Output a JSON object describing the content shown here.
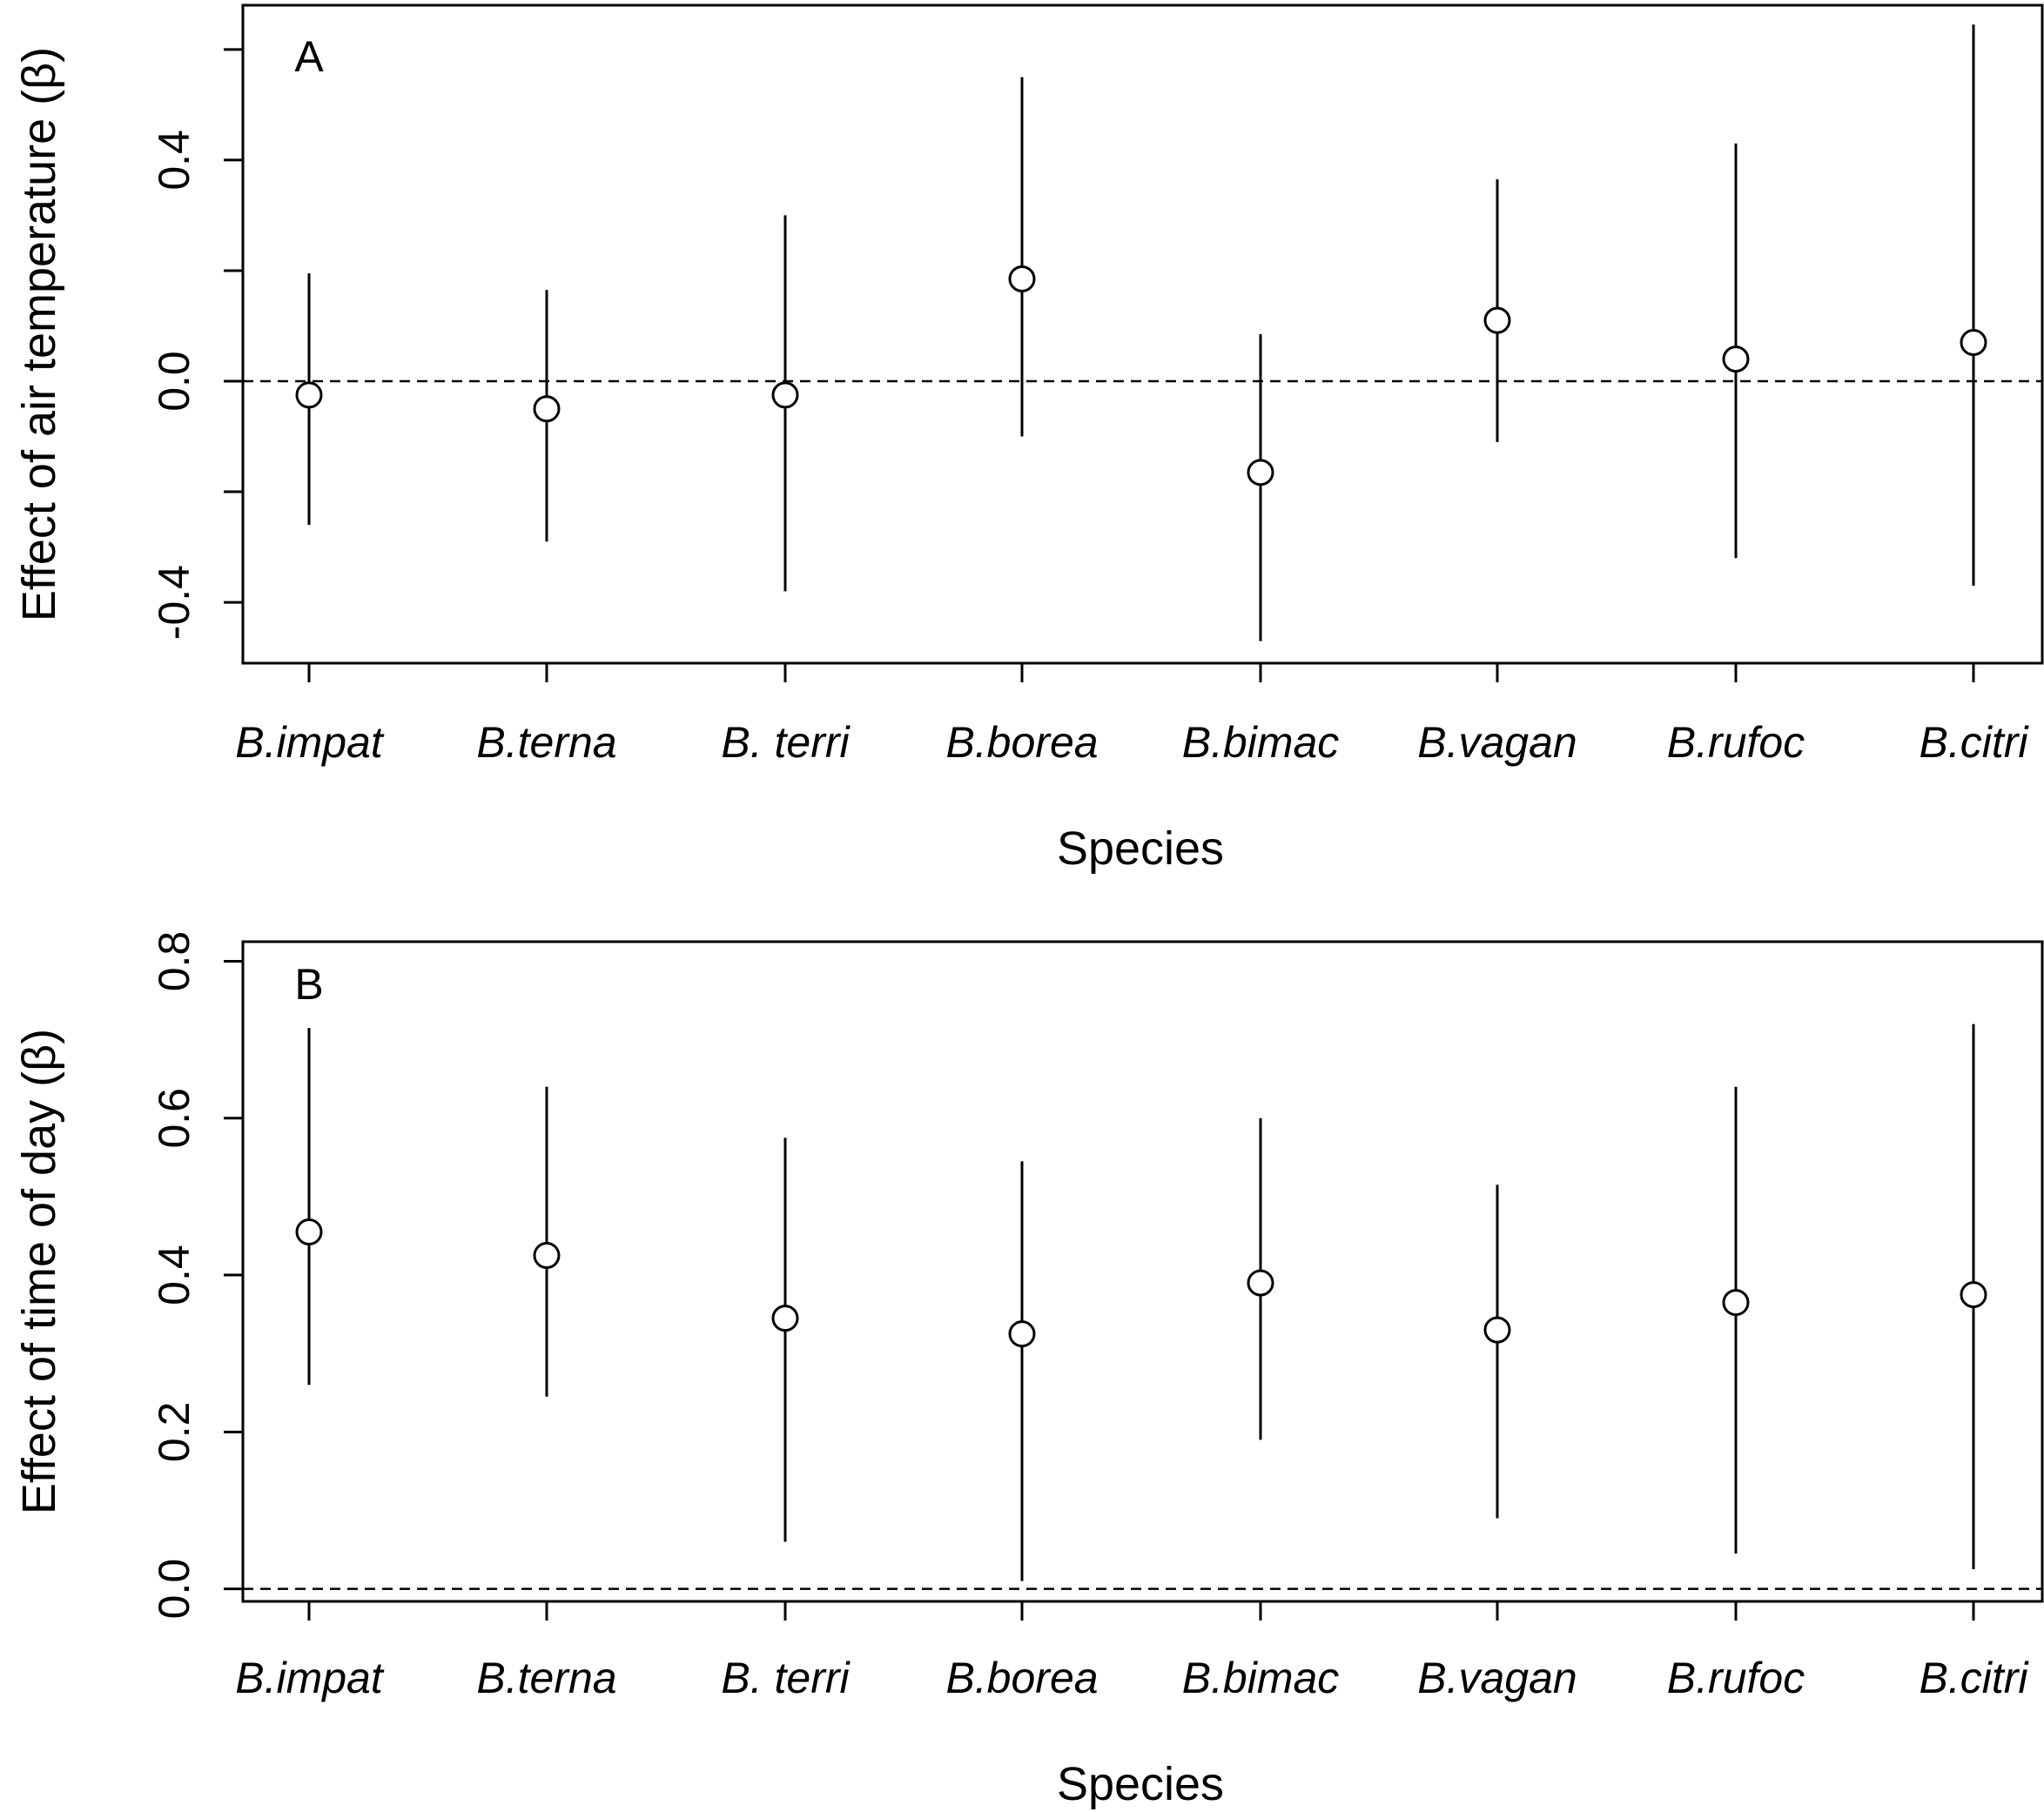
{
  "chart_data": [
    {
      "type": "scatter",
      "panel_label": "A",
      "xlabel": "Species",
      "ylabel": "Effect of air temperature (β)",
      "categories": [
        "B.impat",
        "B.terna",
        "B. terri",
        "B.borea",
        "B.bimac",
        "B.vagan",
        "B.rufoc",
        "B.citri"
      ],
      "estimates": [
        -0.025,
        -0.05,
        -0.025,
        0.185,
        -0.165,
        0.11,
        0.04,
        0.07
      ],
      "ci_lower": [
        -0.26,
        -0.29,
        -0.38,
        -0.1,
        -0.47,
        -0.11,
        -0.32,
        -0.37
      ],
      "ci_upper": [
        0.195,
        0.165,
        0.3,
        0.55,
        0.085,
        0.365,
        0.43,
        0.645
      ],
      "ylim": [
        -0.51,
        0.68
      ],
      "yticks": [
        -0.4,
        -0.2,
        0.0,
        0.2,
        0.4,
        0.6
      ],
      "ytick_labels": [
        "-0.4",
        "",
        "0.0",
        "",
        "0.4",
        ""
      ],
      "reference_line": 0.0
    },
    {
      "type": "scatter",
      "panel_label": "B",
      "xlabel": "Species",
      "ylabel": "Effect of time of day (β)",
      "categories": [
        "B.impat",
        "B.terna",
        "B. terri",
        "B.borea",
        "B.bimac",
        "B.vagan",
        "B.rufoc",
        "B.citri"
      ],
      "estimates": [
        0.455,
        0.425,
        0.345,
        0.325,
        0.39,
        0.33,
        0.365,
        0.375
      ],
      "ci_lower": [
        0.26,
        0.245,
        0.06,
        0.01,
        0.19,
        0.09,
        0.045,
        0.025
      ],
      "ci_upper": [
        0.715,
        0.64,
        0.575,
        0.545,
        0.6,
        0.515,
        0.64,
        0.72
      ],
      "ylim": [
        -0.016,
        0.825
      ],
      "yticks": [
        0.0,
        0.2,
        0.4,
        0.6,
        0.8
      ],
      "ytick_labels": [
        "0.0",
        "0.2",
        "0.4",
        "0.6",
        "0.8"
      ],
      "reference_line": 0.0
    }
  ]
}
